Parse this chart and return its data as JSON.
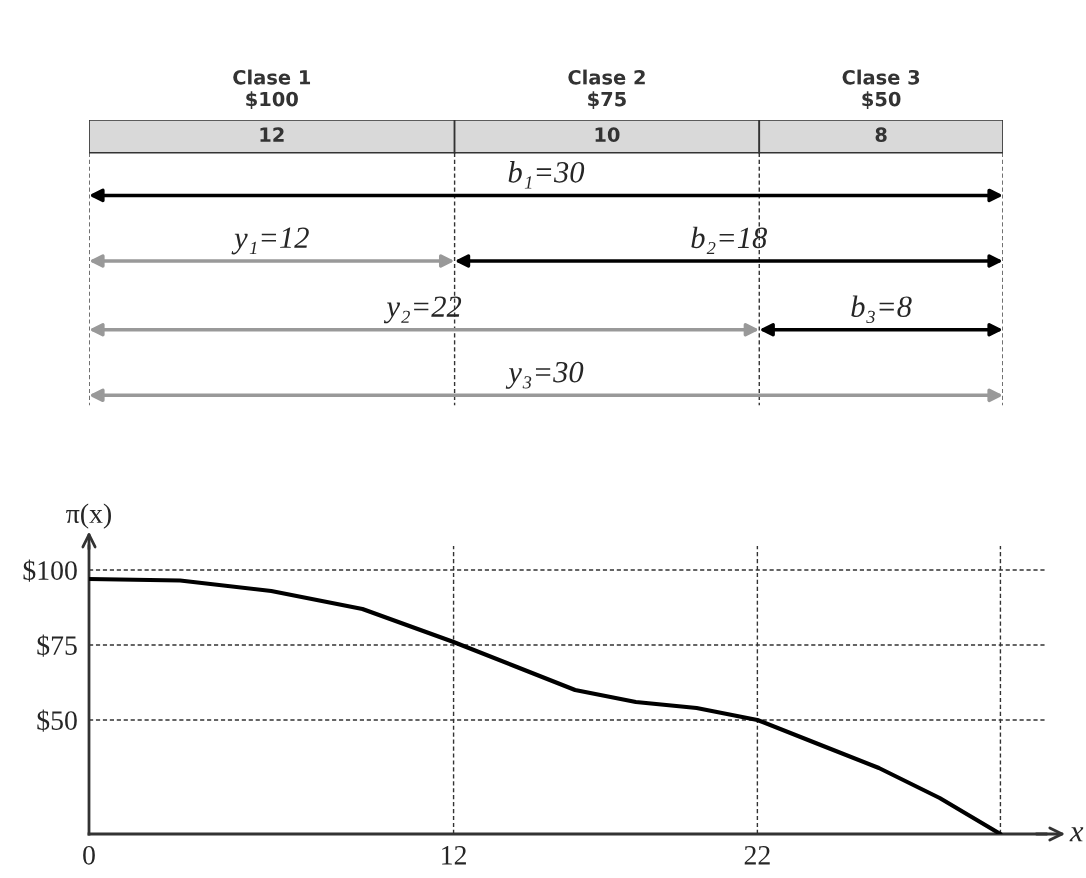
{
  "chart_data": [
    {
      "type": "bar",
      "orientation": "horizontal",
      "stacked": true,
      "categories": [
        null
      ],
      "xlim": [
        0,
        30
      ],
      "data_labels": true,
      "series": [
        {
          "name": "Clase 1\n$100",
          "color": "#d9d9d9",
          "values": [
            12
          ]
        },
        {
          "name": "Clase 2\n$75",
          "color": "#d9d9d9",
          "values": [
            10
          ]
        },
        {
          "name": "Clase 3\n$50",
          "color": "#d9d9d9",
          "values": [
            8
          ]
        }
      ],
      "annotations": [
        "b₁=30",
        "y₁=12",
        "b₂=18",
        "y₂=22",
        "b₃=8",
        "y₃=30"
      ]
    },
    {
      "type": "line",
      "xlabel": "x",
      "ylabel": "π(x)",
      "xlim": [
        0,
        31.5
      ],
      "ylim": [
        12,
        108
      ],
      "xticks": [
        0,
        12,
        22,
        {
          "value": 30,
          "label": null
        }
      ],
      "yticks": [
        {
          "value": 50,
          "label": "$50"
        },
        {
          "value": 75,
          "label": "$75"
        },
        {
          "value": 100,
          "label": "$100"
        }
      ],
      "grid": true,
      "marker": "none",
      "line_style": "solid",
      "series": [
        {
          "color": "#000000",
          "x": [
            0,
            3,
            6,
            9,
            12,
            14,
            16,
            18,
            20,
            22,
            24,
            26,
            28,
            30
          ],
          "values": [
            97,
            96.5,
            93,
            87,
            76,
            68,
            60,
            56,
            54,
            50,
            42,
            34,
            24,
            12
          ]
        }
      ]
    }
  ]
}
